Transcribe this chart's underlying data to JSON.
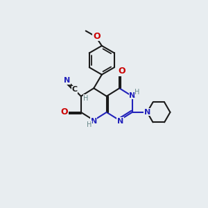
{
  "bg_color": "#e8edf0",
  "bond_color": "#1a1a1a",
  "N_color": "#2222bb",
  "O_color": "#cc0000",
  "C_color": "#1a1a1a",
  "H_color": "#668888",
  "line_width": 1.5,
  "font_size": 8,
  "fig_size": [
    3.0,
    3.0
  ],
  "dpi": 100,
  "xlim": [
    0,
    10
  ],
  "ylim": [
    0,
    10
  ]
}
